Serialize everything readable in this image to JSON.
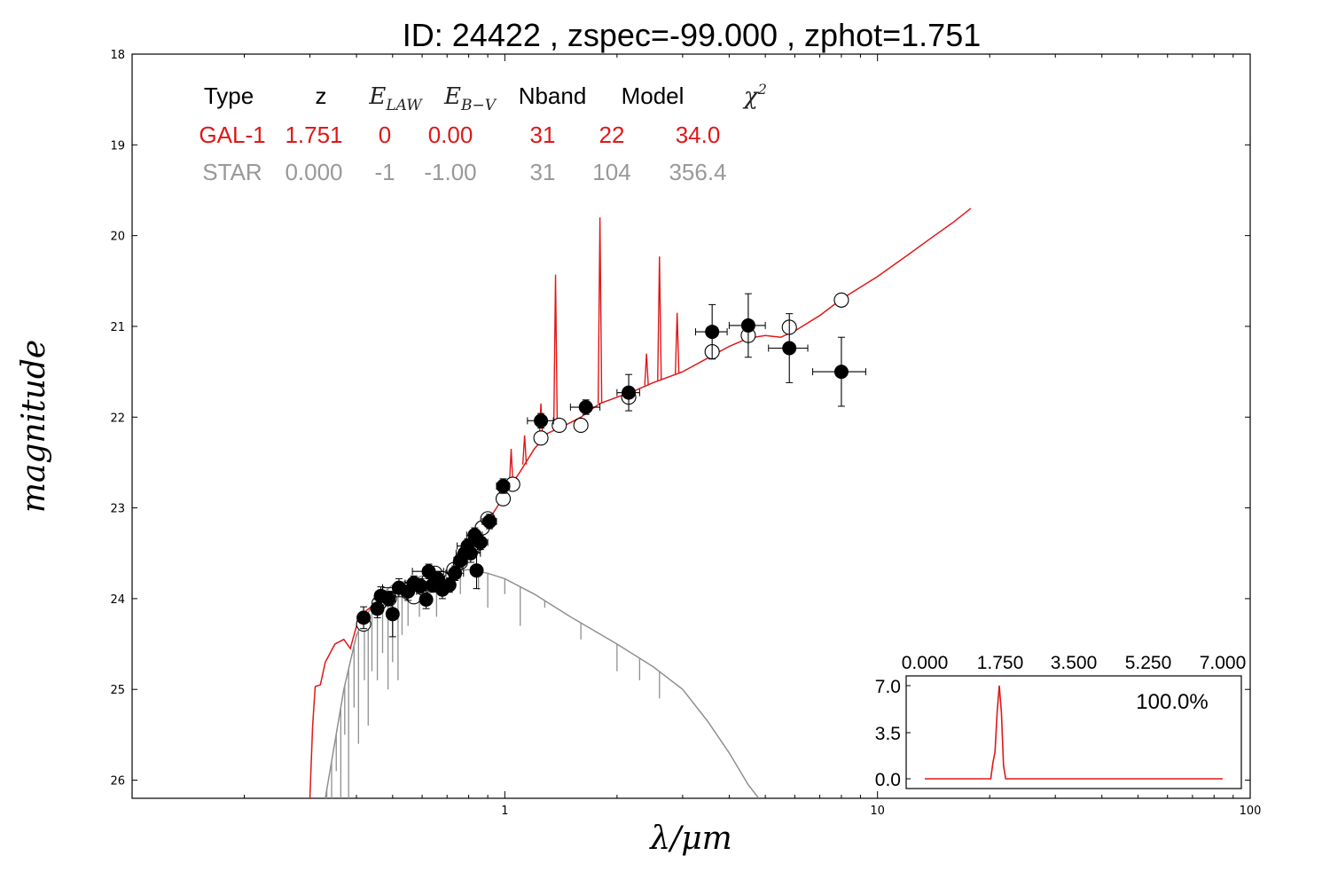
{
  "title": "ID:  24422 , zspec=-99.000 , zphot=1.751",
  "colors": {
    "galaxy": "#e01818",
    "star": "#909090",
    "points": "#000000"
  },
  "table": {
    "headers": [
      {
        "text": "Type",
        "math": false
      },
      {
        "text": "z",
        "math": false
      },
      {
        "text": "E",
        "sub": "LAW",
        "math": true
      },
      {
        "text": "E",
        "sub": "B−V",
        "math": true
      },
      {
        "text": "Nband",
        "math": false
      },
      {
        "text": "Model",
        "math": false
      },
      {
        "text": "χ",
        "sup": "2",
        "math": true
      }
    ],
    "rows": [
      {
        "color": "#e01818",
        "cells": [
          "GAL-1",
          "1.751",
          "0",
          "0.00",
          "31",
          "22",
          "34.0"
        ]
      },
      {
        "color": "#999999",
        "cells": [
          "STAR",
          "0.000",
          "-1",
          "-1.00",
          "31",
          "104",
          "356.4"
        ]
      }
    ]
  },
  "chart_data": [
    {
      "type": "scatter",
      "xlabel": "λ/μm",
      "ylabel": "magnitude",
      "xscale": "log",
      "xlim": [
        0.1,
        100
      ],
      "ylim": [
        26.2,
        18
      ],
      "y_inverted": true,
      "x_ticks": [
        {
          "v": 1,
          "label": "1"
        },
        {
          "v": 10,
          "label": "10"
        },
        {
          "v": 100,
          "label": "100"
        }
      ],
      "y_ticks": [
        18,
        19,
        20,
        21,
        22,
        23,
        24,
        25,
        26
      ],
      "observed": [
        {
          "x": 0.418,
          "y": 24.21,
          "xerr": 0.01,
          "yerr": 0.12
        },
        {
          "x": 0.455,
          "y": 24.11,
          "xerr": 0.012,
          "yerr": 0.1
        },
        {
          "x": 0.465,
          "y": 23.97,
          "xerr": 0.015,
          "yerr": 0.1
        },
        {
          "x": 0.487,
          "y": 24.0,
          "xerr": 0.02,
          "yerr": 0.08
        },
        {
          "x": 0.5,
          "y": 24.17,
          "xerr": 0.015,
          "yerr": 0.25
        },
        {
          "x": 0.52,
          "y": 23.88,
          "xerr": 0.05,
          "yerr": 0.1
        },
        {
          "x": 0.55,
          "y": 23.92,
          "xerr": 0.03,
          "yerr": 0.1
        },
        {
          "x": 0.57,
          "y": 23.83,
          "xerr": 0.03,
          "yerr": 0.08
        },
        {
          "x": 0.595,
          "y": 23.86,
          "xerr": 0.03,
          "yerr": 0.08
        },
        {
          "x": 0.615,
          "y": 24.01,
          "xerr": 0.02,
          "yerr": 0.1
        },
        {
          "x": 0.625,
          "y": 23.7,
          "xerr": 0.06,
          "yerr": 0.08
        },
        {
          "x": 0.64,
          "y": 23.85,
          "xerr": 0.03,
          "yerr": 0.08
        },
        {
          "x": 0.66,
          "y": 23.78,
          "xerr": 0.03,
          "yerr": 0.08
        },
        {
          "x": 0.68,
          "y": 23.9,
          "xerr": 0.02,
          "yerr": 0.1
        },
        {
          "x": 0.71,
          "y": 23.85,
          "xerr": 0.02,
          "yerr": 0.08
        },
        {
          "x": 0.735,
          "y": 23.72,
          "xerr": 0.04,
          "yerr": 0.08
        },
        {
          "x": 0.76,
          "y": 23.58,
          "xerr": 0.03,
          "yerr": 0.08
        },
        {
          "x": 0.78,
          "y": 23.5,
          "xerr": 0.04,
          "yerr": 0.08
        },
        {
          "x": 0.795,
          "y": 23.42,
          "xerr": 0.05,
          "yerr": 0.08
        },
        {
          "x": 0.81,
          "y": 23.5,
          "xerr": 0.05,
          "yerr": 0.1
        },
        {
          "x": 0.83,
          "y": 23.3,
          "xerr": 0.04,
          "yerr": 0.08
        },
        {
          "x": 0.84,
          "y": 23.69,
          "xerr": 0.03,
          "yerr": 0.2
        },
        {
          "x": 0.86,
          "y": 23.38,
          "xerr": 0.04,
          "yerr": 0.08
        },
        {
          "x": 0.91,
          "y": 23.15,
          "xerr": 0.04,
          "yerr": 0.08
        },
        {
          "x": 0.99,
          "y": 22.76,
          "xerr": 0.04,
          "yerr": 0.08
        },
        {
          "x": 1.25,
          "y": 22.04,
          "xerr": 0.1,
          "yerr": 0.08
        },
        {
          "x": 1.65,
          "y": 21.89,
          "xerr": 0.15,
          "yerr": 0.08
        },
        {
          "x": 2.15,
          "y": 21.73,
          "xerr": 0.15,
          "yerr": 0.2
        },
        {
          "x": 3.6,
          "y": 21.06,
          "xerr": 0.35,
          "yerr": 0.3
        },
        {
          "x": 4.5,
          "y": 20.99,
          "xerr": 0.5,
          "yerr": 0.35
        },
        {
          "x": 5.8,
          "y": 21.24,
          "xerr": 0.7,
          "yerr": 0.38
        },
        {
          "x": 8.0,
          "y": 21.5,
          "xerr": 1.3,
          "yerr": 0.38
        }
      ],
      "model_points": [
        {
          "x": 0.418,
          "y": 24.28
        },
        {
          "x": 0.46,
          "y": 24.05
        },
        {
          "x": 0.49,
          "y": 24.0
        },
        {
          "x": 0.55,
          "y": 23.93
        },
        {
          "x": 0.57,
          "y": 23.98
        },
        {
          "x": 0.6,
          "y": 23.88
        },
        {
          "x": 0.625,
          "y": 23.8
        },
        {
          "x": 0.65,
          "y": 23.72
        },
        {
          "x": 0.68,
          "y": 23.78
        },
        {
          "x": 0.73,
          "y": 23.68
        },
        {
          "x": 0.76,
          "y": 23.6
        },
        {
          "x": 0.8,
          "y": 23.45
        },
        {
          "x": 0.84,
          "y": 23.4
        },
        {
          "x": 0.87,
          "y": 23.22
        },
        {
          "x": 0.9,
          "y": 23.12
        },
        {
          "x": 0.99,
          "y": 22.9
        },
        {
          "x": 1.05,
          "y": 22.74
        },
        {
          "x": 1.25,
          "y": 22.23
        },
        {
          "x": 1.4,
          "y": 22.09
        },
        {
          "x": 1.6,
          "y": 22.09
        },
        {
          "x": 2.15,
          "y": 21.78
        },
        {
          "x": 3.6,
          "y": 21.28
        },
        {
          "x": 4.5,
          "y": 21.1
        },
        {
          "x": 5.8,
          "y": 21.01
        },
        {
          "x": 8.0,
          "y": 20.71
        }
      ],
      "galaxy_sed": [
        [
          0.3,
          26.2
        ],
        [
          0.305,
          25.4
        ],
        [
          0.31,
          24.97
        ],
        [
          0.32,
          24.95
        ],
        [
          0.33,
          24.7
        ],
        [
          0.35,
          24.5
        ],
        [
          0.37,
          24.45
        ],
        [
          0.385,
          24.55
        ],
        [
          0.4,
          24.3
        ],
        [
          0.42,
          24.15
        ],
        [
          0.45,
          24.05
        ],
        [
          0.48,
          23.97
        ],
        [
          0.5,
          23.95
        ],
        [
          0.55,
          23.93
        ],
        [
          0.6,
          23.86
        ],
        [
          0.65,
          23.78
        ],
        [
          0.7,
          23.73
        ],
        [
          0.75,
          23.62
        ],
        [
          0.8,
          23.48
        ],
        [
          0.85,
          23.35
        ],
        [
          0.9,
          23.15
        ],
        [
          0.95,
          23.0
        ],
        [
          1.0,
          22.85
        ],
        [
          1.1,
          22.6
        ],
        [
          1.2,
          22.35
        ],
        [
          1.3,
          22.18
        ],
        [
          1.4,
          22.12
        ],
        [
          1.5,
          22.06
        ],
        [
          1.6,
          22.0
        ],
        [
          1.7,
          21.92
        ],
        [
          1.8,
          21.85
        ],
        [
          2.0,
          21.78
        ],
        [
          2.2,
          21.72
        ],
        [
          2.5,
          21.62
        ],
        [
          3.0,
          21.5
        ],
        [
          3.5,
          21.35
        ],
        [
          4.0,
          21.22
        ],
        [
          4.5,
          21.13
        ],
        [
          5.0,
          21.1
        ],
        [
          5.5,
          21.12
        ],
        [
          6.0,
          21.05
        ],
        [
          7.0,
          20.88
        ],
        [
          8.0,
          20.7
        ],
        [
          10.0,
          20.45
        ],
        [
          12.0,
          20.22
        ],
        [
          14.0,
          20.02
        ],
        [
          16.0,
          19.85
        ],
        [
          17.8,
          19.7
        ]
      ],
      "galaxy_lines": [
        {
          "x": 1.368,
          "y": 20.43
        },
        {
          "x": 1.8,
          "y": 19.8
        },
        {
          "x": 2.6,
          "y": 20.23
        },
        {
          "x": 1.04,
          "y": 22.35
        },
        {
          "x": 1.13,
          "y": 22.2
        },
        {
          "x": 1.25,
          "y": 21.85
        },
        {
          "x": 2.4,
          "y": 21.3
        },
        {
          "x": 2.9,
          "y": 20.85
        }
      ],
      "star_sed": [
        [
          0.33,
          26.2
        ],
        [
          0.37,
          25.0
        ],
        [
          0.4,
          24.4
        ],
        [
          0.45,
          24.0
        ],
        [
          0.5,
          23.85
        ],
        [
          0.55,
          23.8
        ],
        [
          0.6,
          23.75
        ],
        [
          0.7,
          23.7
        ],
        [
          0.8,
          23.68
        ],
        [
          0.9,
          23.72
        ],
        [
          1.0,
          23.78
        ],
        [
          1.2,
          23.95
        ],
        [
          1.5,
          24.2
        ],
        [
          2.0,
          24.5
        ],
        [
          2.5,
          24.75
        ],
        [
          3.0,
          25.0
        ],
        [
          3.5,
          25.35
        ],
        [
          4.0,
          25.7
        ],
        [
          4.5,
          26.05
        ],
        [
          4.8,
          26.2
        ]
      ],
      "star_absorption": [
        {
          "x": 0.333,
          "y": 26.2
        },
        {
          "x": 0.343,
          "y": 26.2
        },
        {
          "x": 0.353,
          "y": 25.9
        },
        {
          "x": 0.363,
          "y": 26.2
        },
        {
          "x": 0.372,
          "y": 25.5
        },
        {
          "x": 0.381,
          "y": 26.2
        },
        {
          "x": 0.394,
          "y": 25.2
        },
        {
          "x": 0.405,
          "y": 25.6
        },
        {
          "x": 0.42,
          "y": 24.9
        },
        {
          "x": 0.43,
          "y": 25.4
        },
        {
          "x": 0.44,
          "y": 24.8
        },
        {
          "x": 0.455,
          "y": 24.9
        },
        {
          "x": 0.47,
          "y": 24.6
        },
        {
          "x": 0.486,
          "y": 25.0
        },
        {
          "x": 0.5,
          "y": 24.7
        },
        {
          "x": 0.517,
          "y": 24.9
        },
        {
          "x": 0.53,
          "y": 24.4
        },
        {
          "x": 0.55,
          "y": 24.3
        },
        {
          "x": 0.59,
          "y": 24.2
        },
        {
          "x": 0.656,
          "y": 24.2
        },
        {
          "x": 0.7,
          "y": 23.95
        },
        {
          "x": 0.76,
          "y": 23.95
        },
        {
          "x": 0.85,
          "y": 23.9
        },
        {
          "x": 0.9,
          "y": 24.1
        },
        {
          "x": 1.0,
          "y": 23.95
        },
        {
          "x": 1.1,
          "y": 24.3
        },
        {
          "x": 1.28,
          "y": 24.1
        },
        {
          "x": 1.6,
          "y": 24.45
        },
        {
          "x": 2.0,
          "y": 24.8
        },
        {
          "x": 2.3,
          "y": 24.9
        },
        {
          "x": 2.6,
          "y": 25.1
        }
      ]
    },
    {
      "type": "line",
      "role": "inset-pdf",
      "label": "100.0%",
      "xlim": [
        0.0,
        7.0
      ],
      "ylim": [
        0.0,
        7.0
      ],
      "x_ticks": [
        "0.000",
        "1.750",
        "3.500",
        "5.250",
        "7.000"
      ],
      "y_ticks": [
        "0.0",
        "3.5",
        "7.0"
      ],
      "x": [
        0.0,
        1.55,
        1.6,
        1.65,
        1.7,
        1.75,
        1.8,
        1.85,
        1.9,
        7.0
      ],
      "y": [
        0.0,
        0.0,
        1.2,
        2.0,
        5.0,
        7.0,
        5.0,
        1.0,
        0.0,
        0.0
      ]
    }
  ]
}
